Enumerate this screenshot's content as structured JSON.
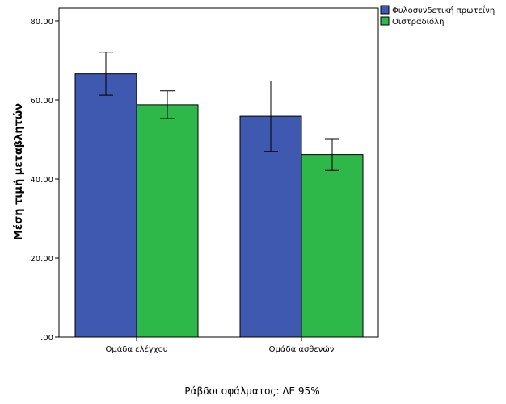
{
  "chart_data": {
    "type": "bar",
    "categories": [
      "Ομάδα ελέγχου",
      "Ομάδα ασθενών"
    ],
    "series": [
      {
        "name": "Φυλοσυνδετική πρωτεΐνη",
        "color": "#3f58b0",
        "values": [
          66.6,
          55.9
        ],
        "error_low": [
          61.2,
          47.0
        ],
        "error_high": [
          72.1,
          64.8
        ]
      },
      {
        "name": "Οιστραδιόλη",
        "color": "#2fb84a",
        "values": [
          58.8,
          46.2
        ],
        "error_low": [
          55.3,
          42.2
        ],
        "error_high": [
          62.3,
          50.2
        ]
      }
    ],
    "ylabel": "Μέση τιμή μεταβλητών",
    "xlabel": "",
    "ylim": [
      0,
      80
    ],
    "yticks": [
      ".00",
      "20.00",
      "40.00",
      "60.00",
      "80.00"
    ],
    "ytick_values": [
      0,
      20,
      40,
      60,
      80
    ],
    "legend_position": "top-right outside",
    "grid": false,
    "footnote": "Ράβδοι σφάλματος: ΔΕ 95%"
  }
}
